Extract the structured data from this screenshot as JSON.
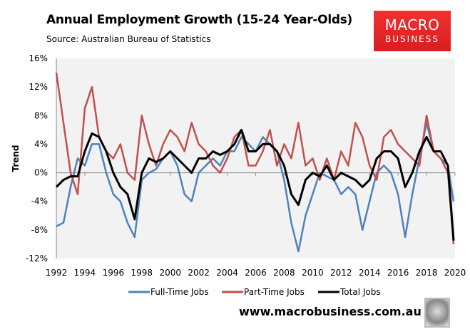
{
  "header": {
    "title": "Annual Employment Growth (15-24 Year-Olds)",
    "subtitle": "Source: Australian Bureau of Statistics"
  },
  "logo": {
    "line1": "MACRO",
    "line2": "BUSINESS"
  },
  "footer": {
    "website": "www.macrobusiness.com.au"
  },
  "chart_data": {
    "type": "line",
    "title": "Annual Employment Growth (15-24 Year-Olds)",
    "xlabel": "",
    "ylabel": "Trend",
    "xlim": [
      1992,
      2020
    ],
    "ylim": [
      -12,
      16
    ],
    "x_ticks": [
      "1992",
      "1994",
      "1996",
      "1998",
      "2000",
      "2002",
      "2004",
      "2006",
      "2008",
      "2010",
      "2012",
      "2014",
      "2016",
      "2018",
      "2020"
    ],
    "y_ticks": [
      "-12%",
      "-8%",
      "-4%",
      "0%",
      "4%",
      "8%",
      "12%",
      "16%"
    ],
    "y_tick_values": [
      -12,
      -8,
      -4,
      0,
      4,
      8,
      12,
      16
    ],
    "legend_position": "bottom",
    "x": [
      1992,
      1992.5,
      1993,
      1993.5,
      1994,
      1994.5,
      1995,
      1995.5,
      1996,
      1996.5,
      1997,
      1997.5,
      1998,
      1998.5,
      1999,
      1999.5,
      2000,
      2000.5,
      2001,
      2001.5,
      2002,
      2002.5,
      2003,
      2003.5,
      2004,
      2004.5,
      2005,
      2005.5,
      2006,
      2006.5,
      2007,
      2007.5,
      2008,
      2008.5,
      2009,
      2009.5,
      2010,
      2010.5,
      2011,
      2011.5,
      2012,
      2012.5,
      2013,
      2013.5,
      2014,
      2014.5,
      2015,
      2015.5,
      2016,
      2016.5,
      2017,
      2017.5,
      2018,
      2018.5,
      2019,
      2019.5,
      2019.9
    ],
    "series": [
      {
        "name": "Full-Time Jobs",
        "color": "#4f81bd",
        "values": [
          -7.5,
          -7,
          -2,
          2,
          1,
          4,
          4,
          0,
          -3,
          -4,
          -7,
          -9,
          -1,
          0,
          0.5,
          2,
          3,
          1,
          -3,
          -4,
          0,
          1,
          2,
          1,
          3,
          3,
          5,
          4,
          3,
          5,
          4,
          3,
          -1,
          -7,
          -11,
          -6,
          -3,
          0,
          -0.5,
          -1,
          -3,
          -2,
          -3,
          -8,
          -4,
          0,
          1,
          0,
          -3,
          -9,
          -3,
          2,
          7,
          3,
          2,
          1,
          -4
        ]
      },
      {
        "name": "Part-Time Jobs",
        "color": "#c0504d",
        "values": [
          14,
          7,
          0,
          -3,
          9,
          12,
          5,
          3,
          2,
          4,
          0,
          -1,
          8,
          4,
          1,
          4,
          6,
          5,
          3,
          7,
          4,
          3,
          1,
          0,
          2,
          5,
          6,
          1,
          1,
          3,
          6,
          1,
          4,
          2,
          7,
          1,
          2,
          -1,
          2,
          -1,
          3,
          1,
          7,
          5,
          1,
          -1,
          5,
          6,
          4,
          3,
          2,
          1,
          8,
          3,
          2,
          0,
          -10
        ]
      },
      {
        "name": "Total Jobs",
        "color": "#000000",
        "values": [
          -2,
          -1,
          -0.5,
          -0.5,
          3,
          5.5,
          5,
          3,
          0,
          -2,
          -3,
          -6.5,
          0,
          2,
          1.5,
          2,
          3,
          2,
          1,
          0,
          2,
          2,
          3,
          2.5,
          3,
          4,
          6,
          3,
          3,
          4,
          4,
          3,
          1,
          -3,
          -4.5,
          -1,
          0,
          -0.5,
          1,
          -1,
          0,
          -0.5,
          -1,
          -2,
          -1,
          2,
          3,
          3,
          2,
          -2,
          0,
          3,
          5,
          3,
          3,
          1,
          -9.5
        ]
      }
    ]
  }
}
